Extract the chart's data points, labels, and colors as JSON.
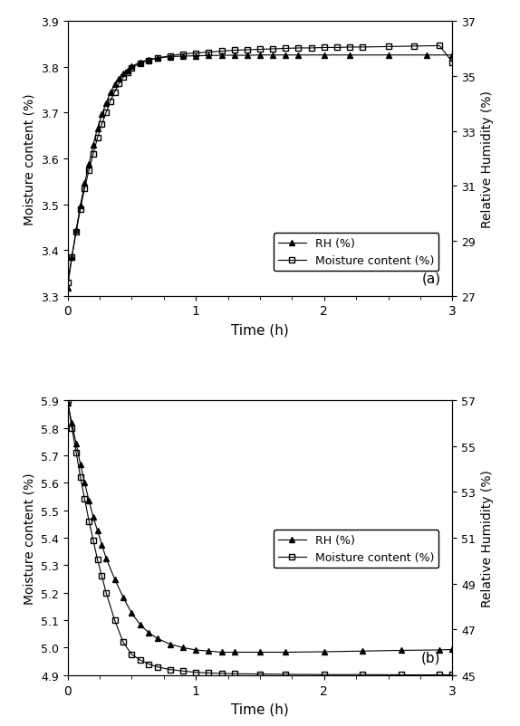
{
  "plot_a": {
    "title_label": "(a)",
    "xlabel": "Time (h)",
    "ylabel_left": "Moisture content (%)",
    "ylabel_right": "Relative Humidity (%)",
    "xlim": [
      0,
      3
    ],
    "ylim_left": [
      3.3,
      3.9
    ],
    "ylim_right": [
      27,
      37
    ],
    "yticks_left": [
      3.3,
      3.4,
      3.5,
      3.6,
      3.7,
      3.8,
      3.9
    ],
    "yticks_right": [
      27,
      29,
      31,
      33,
      35,
      37
    ],
    "xticks_major": [
      0,
      1,
      2,
      3
    ],
    "rh_time": [
      0,
      0.033,
      0.067,
      0.1,
      0.133,
      0.167,
      0.2,
      0.233,
      0.267,
      0.3,
      0.333,
      0.367,
      0.4,
      0.433,
      0.467,
      0.5,
      0.567,
      0.633,
      0.7,
      0.8,
      0.9,
      1.0,
      1.1,
      1.2,
      1.3,
      1.4,
      1.5,
      1.6,
      1.7,
      1.8,
      2.0,
      2.2,
      2.5,
      2.8,
      3.0
    ],
    "rh_values": [
      27.3,
      28.4,
      29.4,
      30.3,
      31.1,
      31.8,
      32.5,
      33.1,
      33.6,
      34.0,
      34.4,
      34.7,
      34.9,
      35.1,
      35.2,
      35.35,
      35.5,
      35.6,
      35.65,
      35.7,
      35.72,
      35.73,
      35.74,
      35.75,
      35.75,
      35.75,
      35.76,
      35.76,
      35.76,
      35.76,
      35.76,
      35.76,
      35.76,
      35.76,
      35.76
    ],
    "mc_time": [
      0,
      0.033,
      0.067,
      0.1,
      0.133,
      0.167,
      0.2,
      0.233,
      0.267,
      0.3,
      0.333,
      0.367,
      0.4,
      0.433,
      0.467,
      0.5,
      0.567,
      0.633,
      0.7,
      0.8,
      0.9,
      1.0,
      1.1,
      1.2,
      1.3,
      1.4,
      1.5,
      1.6,
      1.7,
      1.8,
      1.9,
      2.0,
      2.1,
      2.2,
      2.3,
      2.5,
      2.7,
      2.9,
      3.0
    ],
    "mc_values": [
      3.33,
      3.385,
      3.44,
      3.49,
      3.535,
      3.575,
      3.61,
      3.645,
      3.675,
      3.7,
      3.725,
      3.745,
      3.763,
      3.777,
      3.788,
      3.797,
      3.808,
      3.814,
      3.819,
      3.824,
      3.828,
      3.83,
      3.832,
      3.834,
      3.836,
      3.837,
      3.838,
      3.839,
      3.84,
      3.841,
      3.841,
      3.842,
      3.842,
      3.843,
      3.843,
      3.844,
      3.845,
      3.846,
      3.81
    ],
    "legend_rh": "RH (%)",
    "legend_mc": "Moisture content (%)"
  },
  "plot_b": {
    "title_label": "(b)",
    "xlabel": "Time (h)",
    "ylabel_left": "Moisture content (%)",
    "ylabel_right": "Relative Humidity (%)",
    "xlim": [
      0,
      3
    ],
    "ylim_left": [
      4.9,
      5.9
    ],
    "ylim_right": [
      45,
      57
    ],
    "yticks_left": [
      4.9,
      5.0,
      5.1,
      5.2,
      5.3,
      5.4,
      5.5,
      5.6,
      5.7,
      5.8,
      5.9
    ],
    "yticks_right": [
      45,
      47,
      49,
      51,
      53,
      55,
      57
    ],
    "xticks_major": [
      0,
      1,
      2,
      3
    ],
    "rh_time": [
      0,
      0.033,
      0.067,
      0.1,
      0.133,
      0.167,
      0.2,
      0.233,
      0.267,
      0.3,
      0.367,
      0.433,
      0.5,
      0.567,
      0.633,
      0.7,
      0.8,
      0.9,
      1.0,
      1.1,
      1.2,
      1.3,
      1.5,
      1.7,
      2.0,
      2.3,
      2.6,
      2.9,
      3.0
    ],
    "rh_values": [
      56.9,
      56.0,
      55.1,
      54.2,
      53.4,
      52.6,
      51.9,
      51.3,
      50.7,
      50.1,
      49.2,
      48.4,
      47.7,
      47.2,
      46.85,
      46.6,
      46.35,
      46.2,
      46.1,
      46.05,
      46.0,
      46.0,
      46.0,
      46.0,
      46.02,
      46.05,
      46.08,
      46.1,
      46.12
    ],
    "mc_time": [
      0,
      0.033,
      0.067,
      0.1,
      0.133,
      0.167,
      0.2,
      0.233,
      0.267,
      0.3,
      0.367,
      0.433,
      0.5,
      0.567,
      0.633,
      0.7,
      0.8,
      0.9,
      1.0,
      1.1,
      1.2,
      1.3,
      1.5,
      1.7,
      2.0,
      2.3,
      2.6,
      2.9,
      3.0
    ],
    "mc_values": [
      5.9,
      5.8,
      5.71,
      5.62,
      5.54,
      5.46,
      5.39,
      5.32,
      5.26,
      5.2,
      5.1,
      5.02,
      4.975,
      4.955,
      4.94,
      4.93,
      4.92,
      4.915,
      4.91,
      4.908,
      4.906,
      4.905,
      4.904,
      4.903,
      4.902,
      4.902,
      4.901,
      4.901,
      4.901
    ],
    "legend_rh": "RH (%)",
    "legend_mc": "Moisture content (%)"
  },
  "line_color": "#000000",
  "marker_triangle": "^",
  "marker_square": "s",
  "markersize": 4.5,
  "linewidth": 0.8
}
